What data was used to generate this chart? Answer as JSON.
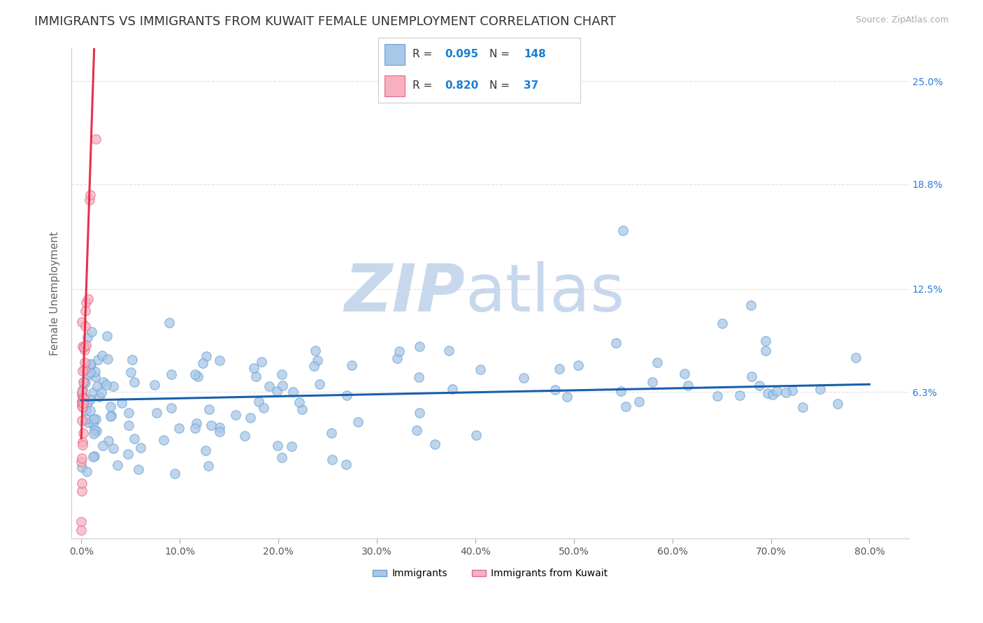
{
  "title": "IMMIGRANTS VS IMMIGRANTS FROM KUWAIT FEMALE UNEMPLOYMENT CORRELATION CHART",
  "source": "Source: ZipAtlas.com",
  "ylabel": "Female Unemployment",
  "x_tick_labels": [
    "0.0%",
    "10.0%",
    "20.0%",
    "30.0%",
    "40.0%",
    "50.0%",
    "60.0%",
    "70.0%",
    "80.0%"
  ],
  "x_tick_vals": [
    0,
    10,
    20,
    30,
    40,
    50,
    60,
    70,
    80
  ],
  "y_tick_labels_right": [
    "6.3%",
    "12.5%",
    "18.8%",
    "25.0%"
  ],
  "y_ticks_right": [
    6.3,
    12.5,
    18.8,
    25.0
  ],
  "xlim": [
    -1,
    84
  ],
  "ylim": [
    -2.5,
    27.0
  ],
  "series1_color": "#a8c8e8",
  "series1_edge": "#6aa0d0",
  "series2_color": "#f8b0c0",
  "series2_edge": "#e06888",
  "trend1_color": "#1a5faa",
  "trend2_color": "#e8304a",
  "ref_line_color": "#cccccc",
  "legend_R1": "0.095",
  "legend_N1": "148",
  "legend_R2": "0.820",
  "legend_N2": "37",
  "legend_label1": "Immigrants",
  "legend_label2": "Immigrants from Kuwait",
  "watermark_zip": "ZIP",
  "watermark_atlas": "atlas",
  "watermark_color": "#c8d8ec",
  "background_color": "#ffffff",
  "grid_color": "#d8dde8",
  "title_fontsize": 13,
  "axis_label_fontsize": 11,
  "trend1_slope": 0.012,
  "trend1_intercept": 5.8,
  "trend2_slope": 18.0,
  "trend2_intercept": 3.5
}
